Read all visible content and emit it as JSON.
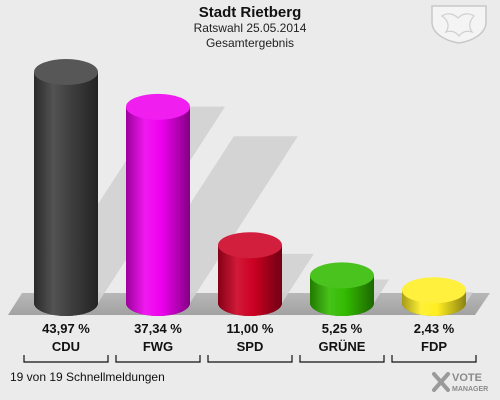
{
  "header": {
    "title": "Stadt Rietberg",
    "subtitle": "Ratswahl 25.05.2014",
    "caption": "Gesamtergebnis"
  },
  "footer": {
    "status": "19 von 19 Schnellmeldungen"
  },
  "brand": {
    "line1": "VOTE",
    "line2": "MANAGER"
  },
  "crest": {
    "icon": "coat-of-arms-icon"
  },
  "chart_data": {
    "type": "bar",
    "categories": [
      "CDU",
      "FWG",
      "SPD",
      "GRÜNE",
      "FDP"
    ],
    "values": [
      43.97,
      37.34,
      11.0,
      5.25,
      2.43
    ],
    "value_labels": [
      "43,97 %",
      "37,34 %",
      "11,00 %",
      "5,25 %",
      "2,43 %"
    ],
    "colors": [
      "#404040",
      "#ee00ee",
      "#cc0022",
      "#33bb00",
      "#ffee22"
    ],
    "ylim": [
      0,
      45
    ],
    "grid": false,
    "legend": "none"
  }
}
